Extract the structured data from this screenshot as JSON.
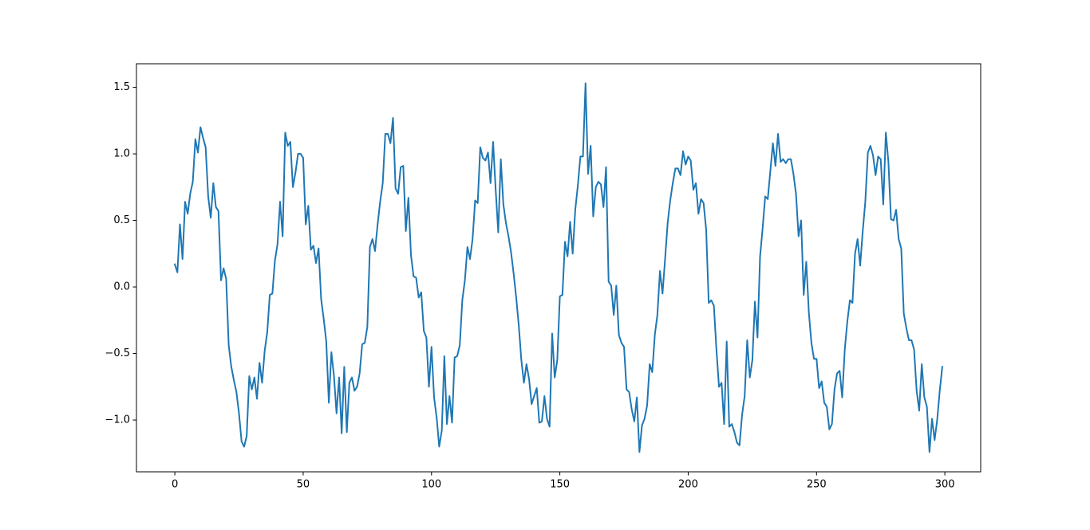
{
  "chart_data": {
    "type": "line",
    "x": [
      0,
      1,
      2,
      3,
      4,
      5,
      6,
      7,
      8,
      9,
      10,
      11,
      12,
      13,
      14,
      15,
      16,
      17,
      18,
      19,
      20,
      21,
      22,
      23,
      24,
      25,
      26,
      27,
      28,
      29,
      30,
      31,
      32,
      33,
      34,
      35,
      36,
      37,
      38,
      39,
      40,
      41,
      42,
      43,
      44,
      45,
      46,
      47,
      48,
      49,
      50,
      51,
      52,
      53,
      54,
      55,
      56,
      57,
      58,
      59,
      60,
      61,
      62,
      63,
      64,
      65,
      66,
      67,
      68,
      69,
      70,
      71,
      72,
      73,
      74,
      75,
      76,
      77,
      78,
      79,
      80,
      81,
      82,
      83,
      84,
      85,
      86,
      87,
      88,
      89,
      90,
      91,
      92,
      93,
      94,
      95,
      96,
      97,
      98,
      99,
      100,
      101,
      102,
      103,
      104,
      105,
      106,
      107,
      108,
      109,
      110,
      111,
      112,
      113,
      114,
      115,
      116,
      117,
      118,
      119,
      120,
      121,
      122,
      123,
      124,
      125,
      126,
      127,
      128,
      129,
      130,
      131,
      132,
      133,
      134,
      135,
      136,
      137,
      138,
      139,
      140,
      141,
      142,
      143,
      144,
      145,
      146,
      147,
      148,
      149,
      150,
      151,
      152,
      153,
      154,
      155,
      156,
      157,
      158,
      159,
      160,
      161,
      162,
      163,
      164,
      165,
      166,
      167,
      168,
      169,
      170,
      171,
      172,
      173,
      174,
      175,
      176,
      177,
      178,
      179,
      180,
      181,
      182,
      183,
      184,
      185,
      186,
      187,
      188,
      189,
      190,
      191,
      192,
      193,
      194,
      195,
      196,
      197,
      198,
      199,
      200,
      201,
      202,
      203,
      204,
      205,
      206,
      207,
      208,
      209,
      210,
      211,
      212,
      213,
      214,
      215,
      216,
      217,
      218,
      219,
      220,
      221,
      222,
      223,
      224,
      225,
      226,
      227,
      228,
      229,
      230,
      231,
      232,
      233,
      234,
      235,
      236,
      237,
      238,
      239,
      240,
      241,
      242,
      243,
      244,
      245,
      246,
      247,
      248,
      249,
      250,
      251,
      252,
      253,
      254,
      255,
      256,
      257,
      258,
      259,
      260,
      261,
      262,
      263,
      264,
      265,
      266,
      267,
      268,
      269,
      270,
      271,
      272,
      273,
      274,
      275,
      276,
      277,
      278,
      279,
      280,
      281,
      282,
      283,
      284,
      285,
      286,
      287,
      288,
      289,
      290,
      291,
      292,
      293,
      294,
      295,
      296,
      297,
      298,
      299
    ],
    "series": [
      {
        "color": "#1f77b4",
        "values": [
          0.17,
          0.11,
          0.47,
          0.21,
          0.64,
          0.55,
          0.7,
          0.79,
          1.11,
          1.01,
          1.2,
          1.12,
          1.05,
          0.68,
          0.52,
          0.78,
          0.6,
          0.57,
          0.05,
          0.14,
          0.06,
          -0.44,
          -0.6,
          -0.7,
          -0.79,
          -0.95,
          -1.16,
          -1.2,
          -1.12,
          -0.67,
          -0.77,
          -0.68,
          -0.84,
          -0.57,
          -0.72,
          -0.48,
          -0.34,
          -0.06,
          -0.05,
          0.2,
          0.32,
          0.64,
          0.38,
          1.16,
          1.06,
          1.09,
          0.75,
          0.86,
          1.0,
          1.0,
          0.97,
          0.47,
          0.61,
          0.28,
          0.31,
          0.18,
          0.29,
          -0.09,
          -0.24,
          -0.41,
          -0.87,
          -0.49,
          -0.67,
          -0.95,
          -0.68,
          -1.1,
          -0.6,
          -1.09,
          -0.72,
          -0.68,
          -0.78,
          -0.75,
          -0.65,
          -0.43,
          -0.42,
          -0.3,
          0.3,
          0.36,
          0.27,
          0.47,
          0.64,
          0.78,
          1.15,
          1.15,
          1.08,
          1.27,
          0.74,
          0.7,
          0.9,
          0.91,
          0.42,
          0.67,
          0.24,
          0.08,
          0.07,
          -0.08,
          -0.04,
          -0.33,
          -0.38,
          -0.75,
          -0.45,
          -0.83,
          -0.98,
          -1.2,
          -1.08,
          -0.52,
          -1.03,
          -0.82,
          -1.02,
          -0.53,
          -0.52,
          -0.44,
          -0.1,
          0.05,
          0.3,
          0.21,
          0.36,
          0.65,
          0.63,
          1.05,
          0.97,
          0.95,
          1.01,
          0.78,
          1.09,
          0.73,
          0.41,
          0.96,
          0.62,
          0.48,
          0.38,
          0.26,
          0.1,
          -0.08,
          -0.29,
          -0.55,
          -0.72,
          -0.58,
          -0.69,
          -0.88,
          -0.82,
          -0.76,
          -1.02,
          -1.01,
          -0.82,
          -0.99,
          -1.05,
          -0.35,
          -0.68,
          -0.55,
          -0.07,
          -0.06,
          0.34,
          0.23,
          0.49,
          0.25,
          0.58,
          0.76,
          0.98,
          0.98,
          1.53,
          0.85,
          1.06,
          0.53,
          0.75,
          0.79,
          0.77,
          0.6,
          0.9,
          0.04,
          0.01,
          -0.21,
          0.01,
          -0.36,
          -0.42,
          -0.45,
          -0.77,
          -0.79,
          -0.92,
          -1.01,
          -0.83,
          -1.24,
          -1.04,
          -0.99,
          -0.89,
          -0.58,
          -0.64,
          -0.36,
          -0.21,
          0.12,
          -0.05,
          0.21,
          0.48,
          0.65,
          0.78,
          0.89,
          0.89,
          0.84,
          1.02,
          0.92,
          0.98,
          0.95,
          0.73,
          0.78,
          0.55,
          0.66,
          0.63,
          0.43,
          -0.12,
          -0.1,
          -0.14,
          -0.47,
          -0.75,
          -0.72,
          -1.03,
          -0.41,
          -1.05,
          -1.03,
          -1.09,
          -1.17,
          -1.19,
          -0.96,
          -0.82,
          -0.4,
          -0.68,
          -0.55,
          -0.11,
          -0.38,
          0.23,
          0.44,
          0.68,
          0.66,
          0.87,
          1.08,
          0.91,
          1.15,
          0.94,
          0.96,
          0.93,
          0.96,
          0.96,
          0.85,
          0.7,
          0.38,
          0.5,
          -0.06,
          0.19,
          -0.19,
          -0.42,
          -0.54,
          -0.54,
          -0.76,
          -0.71,
          -0.87,
          -0.9,
          -1.07,
          -1.03,
          -0.77,
          -0.65,
          -0.63,
          -0.83,
          -0.47,
          -0.26,
          -0.1,
          -0.12,
          0.25,
          0.36,
          0.16,
          0.42,
          0.64,
          1.01,
          1.06,
          0.99,
          0.84,
          0.98,
          0.96,
          0.62,
          1.16,
          0.94,
          0.51,
          0.5,
          0.58,
          0.36,
          0.29,
          -0.2,
          -0.31,
          -0.4,
          -0.4,
          -0.47,
          -0.78,
          -0.93,
          -0.58,
          -0.83,
          -0.9,
          -1.24,
          -0.99,
          -1.15,
          -1.0,
          -0.78,
          -0.6
        ]
      }
    ],
    "xlim": [
      -14.95,
      313.95
    ],
    "ylim": [
      -1.389,
      1.677
    ],
    "xticks": [
      0,
      50,
      100,
      150,
      200,
      250,
      300
    ],
    "yticks": [
      {
        "value": -1,
        "label": "−1.0"
      },
      {
        "value": -0.5,
        "label": "−0.5"
      },
      {
        "value": 0,
        "label": "0.0"
      },
      0.5,
      {
        "value": 1,
        "label": "1.0"
      },
      1.5
    ]
  }
}
